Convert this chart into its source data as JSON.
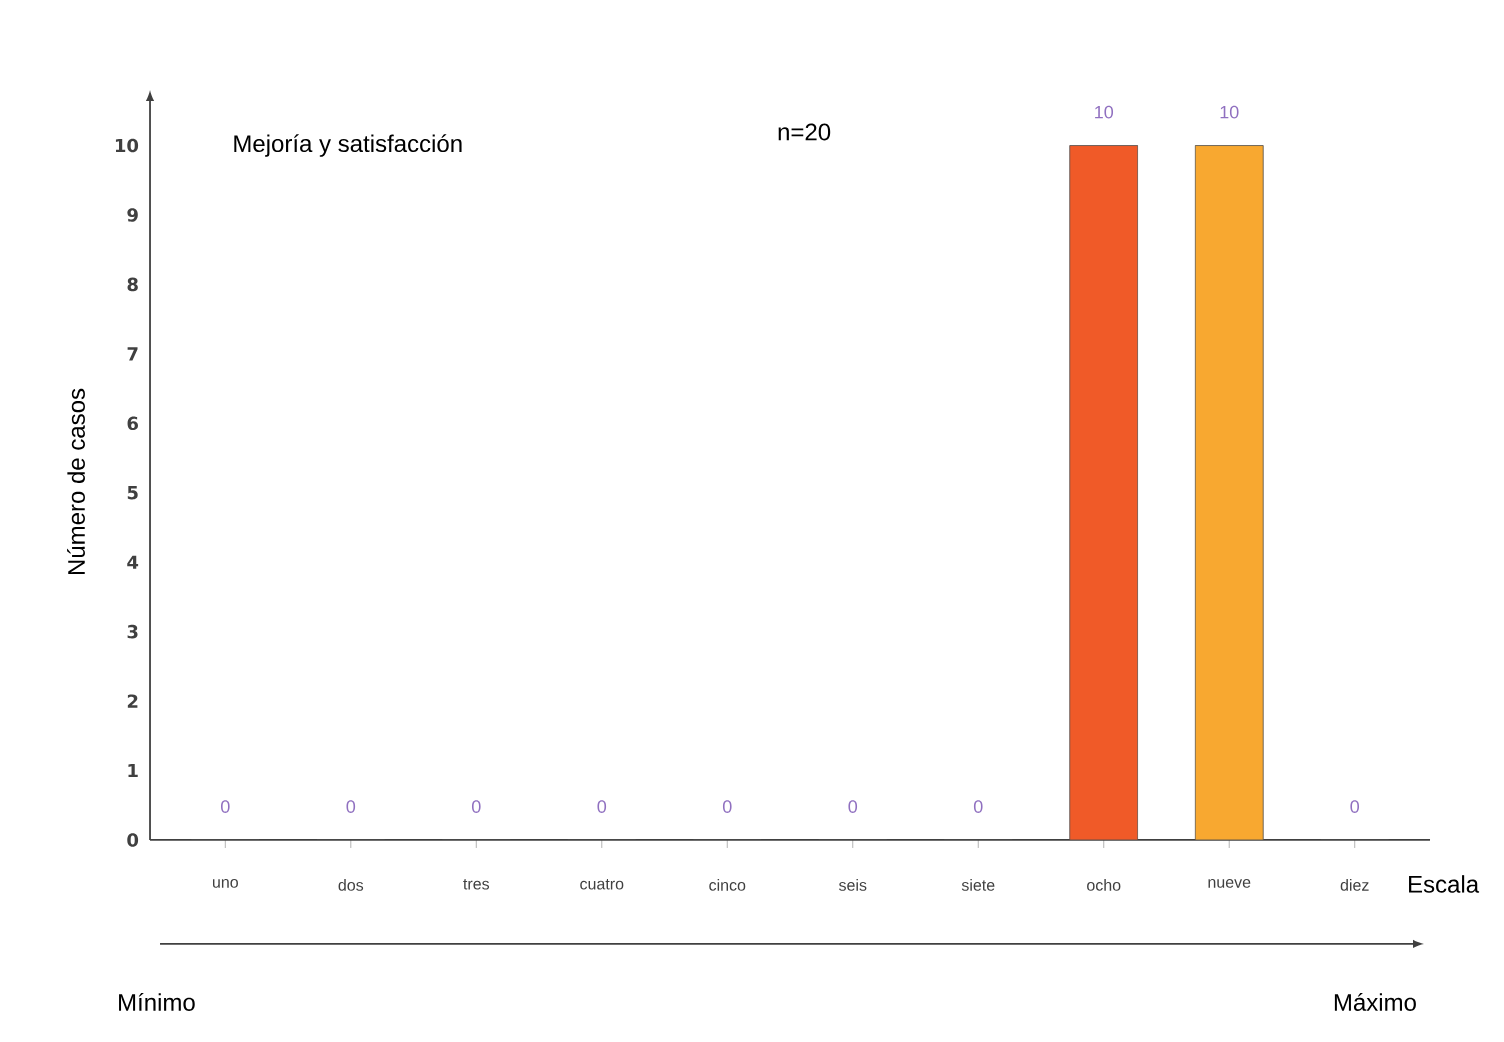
{
  "chart_data": {
    "type": "bar",
    "title": "Mejoría  y satisfacción",
    "xlabel": "Escala",
    "ylabel": "Número de casos",
    "categories": [
      "uno",
      "dos",
      "tres",
      "cuatro",
      "cinco",
      "seis",
      "siete",
      "ocho",
      "nueve",
      "diez"
    ],
    "values": [
      0,
      0,
      0,
      0,
      0,
      0,
      0,
      10,
      10,
      0
    ],
    "colors": [
      "#8080c8",
      "#8b2a6a",
      "#d8d8a8",
      "#a0d8e0",
      "#5a1a6a",
      "#e07878",
      "#1a5aa8",
      "#f05a28",
      "#f8a830",
      "#a040a0"
    ],
    "ylim": [
      0,
      10
    ],
    "yticks": [
      0,
      1,
      2,
      3,
      4,
      5,
      6,
      7,
      8,
      9,
      10
    ],
    "data_labels": true,
    "annotations": [
      "n=20",
      "Mínimo",
      "Máximo"
    ]
  }
}
